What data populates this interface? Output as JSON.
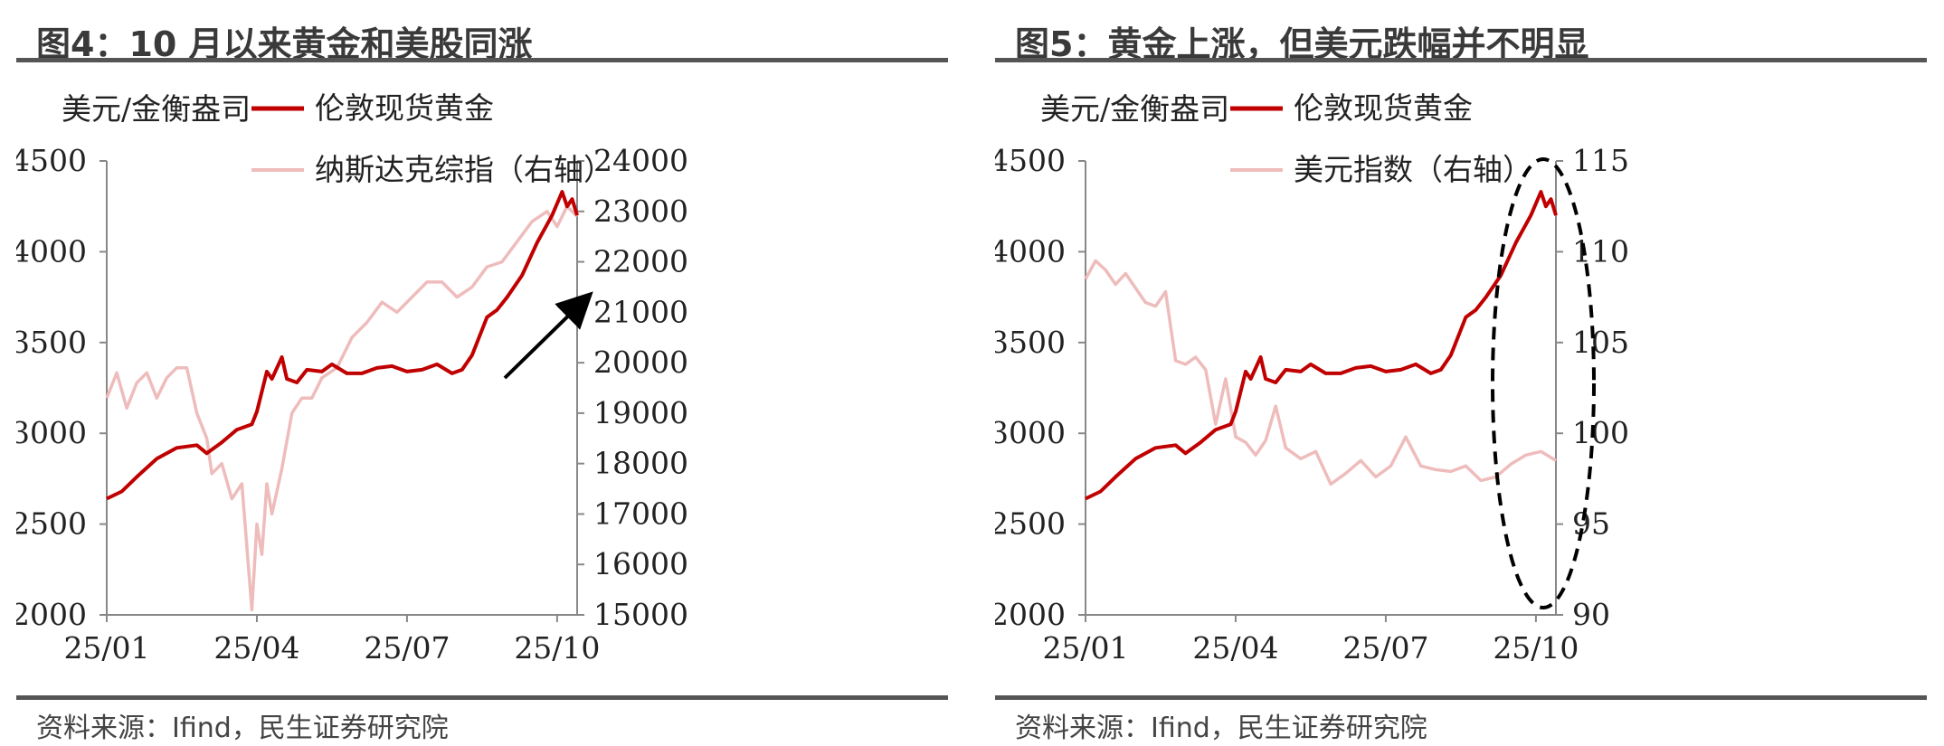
{
  "panels": [
    {
      "title": "图4：10 月以来黄金和美股同涨",
      "source": "资料来源：Ifind，民生证券研究院",
      "chart_data": {
        "type": "line",
        "left_axis_label": "美元/金衡盎司",
        "x_tick_labels": [
          "25/01",
          "25/04",
          "25/07",
          "25/10"
        ],
        "left_axis": {
          "ticks": [
            2000,
            2500,
            3000,
            3500,
            4000,
            4500
          ],
          "ylim": [
            2000,
            4500
          ]
        },
        "right_axis": {
          "ticks": [
            15000,
            16000,
            17000,
            18000,
            19000,
            20000,
            21000,
            22000,
            23000,
            24000
          ],
          "ylim": [
            15000,
            24000
          ]
        },
        "x_range": [
          0,
          9.4
        ],
        "annotation": "arrow",
        "series": [
          {
            "name": "伦敦现货黄金",
            "axis": "left",
            "color": "#c00000",
            "x": [
              0,
              0.3,
              0.6,
              1.0,
              1.4,
              1.8,
              2.0,
              2.3,
              2.6,
              2.9,
              3.0,
              3.2,
              3.3,
              3.5,
              3.6,
              3.8,
              4.0,
              4.3,
              4.5,
              4.8,
              5.1,
              5.4,
              5.7,
              6.0,
              6.3,
              6.6,
              6.9,
              7.1,
              7.3,
              7.6,
              7.8,
              8.0,
              8.3,
              8.6,
              8.9,
              9.1,
              9.2,
              9.3,
              9.4
            ],
            "y": [
              2640,
              2680,
              2760,
              2860,
              2920,
              2935,
              2890,
              2950,
              3020,
              3050,
              3120,
              3340,
              3300,
              3420,
              3300,
              3280,
              3350,
              3340,
              3380,
              3330,
              3330,
              3360,
              3370,
              3340,
              3350,
              3380,
              3330,
              3350,
              3430,
              3640,
              3680,
              3750,
              3870,
              4050,
              4200,
              4330,
              4250,
              4290,
              4200
            ]
          },
          {
            "name": "纳斯达克综指（右轴）",
            "axis": "right",
            "color": "#efbcbc",
            "x": [
              0,
              0.2,
              0.4,
              0.6,
              0.8,
              1.0,
              1.2,
              1.4,
              1.6,
              1.8,
              2.0,
              2.1,
              2.3,
              2.5,
              2.7,
              2.9,
              3.0,
              3.1,
              3.2,
              3.3,
              3.5,
              3.7,
              3.9,
              4.1,
              4.3,
              4.6,
              4.9,
              5.2,
              5.5,
              5.8,
              6.1,
              6.4,
              6.7,
              7.0,
              7.3,
              7.6,
              7.9,
              8.2,
              8.5,
              8.8,
              9.0,
              9.2,
              9.4
            ],
            "y": [
              19300,
              19800,
              19100,
              19600,
              19800,
              19300,
              19700,
              19900,
              19900,
              19000,
              18500,
              17800,
              18000,
              17300,
              17600,
              15100,
              16800,
              16200,
              17600,
              17000,
              17900,
              19000,
              19300,
              19300,
              19700,
              19900,
              20500,
              20800,
              21200,
              21000,
              21300,
              21600,
              21600,
              21300,
              21500,
              21900,
              22000,
              22400,
              22800,
              23000,
              22700,
              23100,
              22900
            ]
          }
        ]
      }
    },
    {
      "title": "图5：黄金上涨，但美元跌幅并不明显",
      "source": "资料来源：Ifind，民生证券研究院",
      "chart_data": {
        "type": "line",
        "left_axis_label": "美元/金衡盎司",
        "x_tick_labels": [
          "25/01",
          "25/04",
          "25/07",
          "25/10"
        ],
        "left_axis": {
          "ticks": [
            2000,
            2500,
            3000,
            3500,
            4000,
            4500
          ],
          "ylim": [
            2000,
            4500
          ]
        },
        "right_axis": {
          "ticks": [
            90,
            95,
            100,
            105,
            110,
            115
          ],
          "ylim": [
            90,
            115
          ]
        },
        "x_range": [
          0,
          9.4
        ],
        "annotation": "dashed ellipse",
        "series": [
          {
            "name": "伦敦现货黄金",
            "axis": "left",
            "color": "#c00000",
            "x": [
              0,
              0.3,
              0.6,
              1.0,
              1.4,
              1.8,
              2.0,
              2.3,
              2.6,
              2.9,
              3.0,
              3.2,
              3.3,
              3.5,
              3.6,
              3.8,
              4.0,
              4.3,
              4.5,
              4.8,
              5.1,
              5.4,
              5.7,
              6.0,
              6.3,
              6.6,
              6.9,
              7.1,
              7.3,
              7.6,
              7.8,
              8.0,
              8.3,
              8.6,
              8.9,
              9.1,
              9.2,
              9.3,
              9.4
            ],
            "y": [
              2640,
              2680,
              2760,
              2860,
              2920,
              2935,
              2890,
              2950,
              3020,
              3050,
              3120,
              3340,
              3300,
              3420,
              3300,
              3280,
              3350,
              3340,
              3380,
              3330,
              3330,
              3360,
              3370,
              3340,
              3350,
              3380,
              3330,
              3350,
              3430,
              3640,
              3680,
              3750,
              3870,
              4050,
              4200,
              4330,
              4250,
              4290,
              4200
            ]
          },
          {
            "name": "美元指数（右轴）",
            "axis": "right",
            "color": "#efbcbc",
            "x": [
              0,
              0.2,
              0.4,
              0.6,
              0.8,
              1.0,
              1.2,
              1.4,
              1.6,
              1.8,
              2.0,
              2.2,
              2.4,
              2.6,
              2.8,
              3.0,
              3.2,
              3.4,
              3.6,
              3.8,
              4.0,
              4.3,
              4.6,
              4.9,
              5.2,
              5.5,
              5.8,
              6.1,
              6.4,
              6.7,
              7.0,
              7.3,
              7.6,
              7.9,
              8.2,
              8.5,
              8.8,
              9.1,
              9.4
            ],
            "y": [
              108.5,
              109.5,
              109.0,
              108.2,
              108.8,
              108.0,
              107.2,
              107.0,
              107.8,
              104.0,
              103.8,
              104.2,
              103.5,
              100.5,
              103.0,
              99.8,
              99.5,
              98.8,
              99.6,
              101.5,
              99.2,
              98.6,
              99.0,
              97.2,
              97.8,
              98.5,
              97.6,
              98.2,
              99.8,
              98.2,
              98.0,
              97.9,
              98.2,
              97.4,
              97.6,
              98.3,
              98.8,
              99.0,
              98.5
            ]
          }
        ]
      }
    }
  ]
}
